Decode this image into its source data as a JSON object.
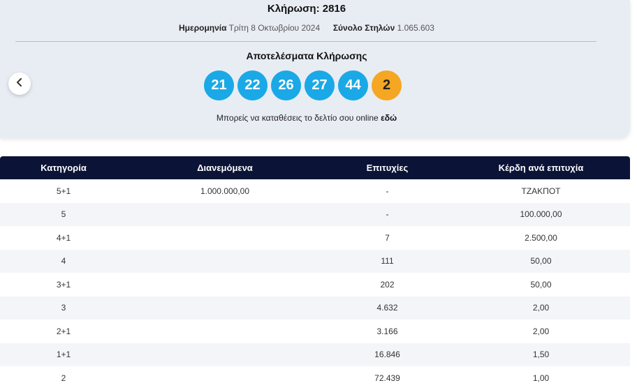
{
  "draw": {
    "title": "Κλήρωση: 2816",
    "date_label": "Ημερομηνία",
    "date_value": "Τρίτη 8 Οκτωβρίου 2024",
    "columns_label": "Σύνολο Στηλών",
    "columns_value": "1.065.603",
    "results_title": "Αποτελέσματα Κλήρωσης",
    "numbers": [
      "21",
      "22",
      "26",
      "27",
      "44"
    ],
    "joker": "2",
    "online_text": "Μπορείς να καταθέσεις το δελτίο σου online",
    "online_link": "εδώ"
  },
  "icons": {
    "prev": "chevron-left-icon"
  },
  "colors": {
    "ball": "#1aa9e6",
    "joker": "#f5a623",
    "header": "#0b1437"
  },
  "table": {
    "headers": [
      "Κατηγορία",
      "Διανεμόμενα",
      "Επιτυχίες",
      "Κέρδη ανά επιτυχία"
    ],
    "rows": [
      [
        "5+1",
        "1.000.000,00",
        "-",
        "ΤΖΑΚΠΟΤ"
      ],
      [
        "5",
        "",
        "-",
        "100.000,00"
      ],
      [
        "4+1",
        "",
        "7",
        "2.500,00"
      ],
      [
        "4",
        "",
        "111",
        "50,00"
      ],
      [
        "3+1",
        "",
        "202",
        "50,00"
      ],
      [
        "3",
        "",
        "4.632",
        "2,00"
      ],
      [
        "2+1",
        "",
        "3.166",
        "2,00"
      ],
      [
        "1+1",
        "",
        "16.846",
        "1,50"
      ],
      [
        "2",
        "",
        "72.439",
        "1,00"
      ]
    ]
  }
}
